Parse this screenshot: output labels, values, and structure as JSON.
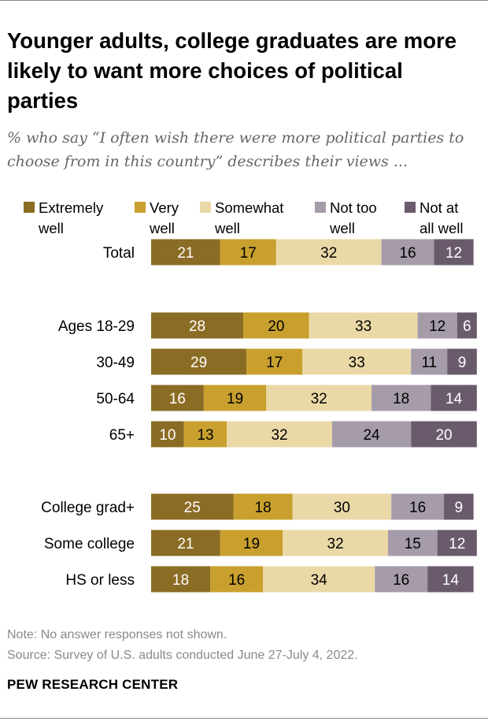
{
  "title": "Younger adults, college graduates are more likely to want more choices of political parties",
  "subtitle": "% who say “I often wish there were more political parties to choose from in this country” describes their views ...",
  "note": "Note: No answer responses not shown.",
  "source": "Source: Survey of U.S. adults conducted June 27-July 4, 2022.",
  "brand": "PEW RESEARCH CENTER",
  "chart_data": {
    "type": "bar",
    "orientation": "horizontal-stacked",
    "unit": "%",
    "series": [
      {
        "name": "Extremely well",
        "label_lines": [
          "Extremely",
          "well"
        ],
        "color": "#8b6c24",
        "text_color": "#ffffff"
      },
      {
        "name": "Very well",
        "label_lines": [
          "Very",
          "well"
        ],
        "color": "#c9a02e",
        "text_color": "#000000"
      },
      {
        "name": "Somewhat well",
        "label_lines": [
          "Somewhat",
          "well"
        ],
        "color": "#ead9a7",
        "text_color": "#000000"
      },
      {
        "name": "Not too well",
        "label_lines": [
          "Not too",
          "well"
        ],
        "color": "#a59ba9",
        "text_color": "#000000"
      },
      {
        "name": "Not at all well",
        "label_lines": [
          "Not at",
          "all well"
        ],
        "color": "#6a5b6c",
        "text_color": "#ffffff"
      }
    ],
    "categories": [
      "Total",
      "Ages 18-29",
      "30-49",
      "50-64",
      "65+",
      "College grad+",
      "Some college",
      "HS or less"
    ],
    "values": [
      [
        21,
        17,
        32,
        16,
        12
      ],
      [
        28,
        20,
        33,
        12,
        6
      ],
      [
        29,
        17,
        33,
        11,
        9
      ],
      [
        16,
        19,
        32,
        18,
        14
      ],
      [
        10,
        13,
        32,
        24,
        20
      ],
      [
        25,
        18,
        30,
        16,
        9
      ],
      [
        21,
        19,
        32,
        15,
        12
      ],
      [
        18,
        16,
        34,
        16,
        14
      ]
    ],
    "groups": [
      [
        "Total"
      ],
      [
        "Ages 18-29",
        "30-49",
        "50-64",
        "65+"
      ],
      [
        "College grad+",
        "Some college",
        "HS or less"
      ]
    ],
    "xlim": [
      0,
      100
    ]
  }
}
